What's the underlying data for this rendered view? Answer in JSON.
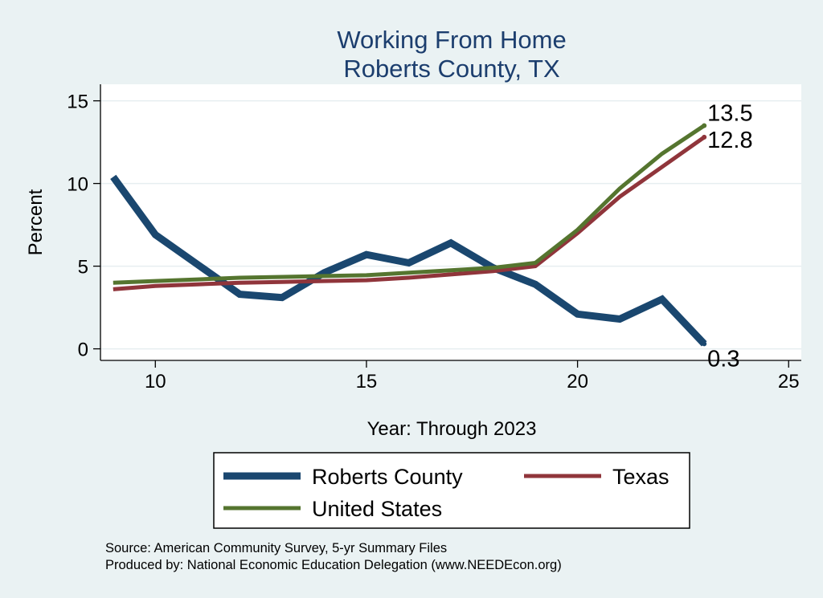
{
  "chart_data": {
    "type": "line",
    "title": "Working From Home",
    "subtitle": "Roberts County, TX",
    "xlabel": "Year: Through 2023",
    "ylabel": "Percent",
    "xlim": [
      8.7,
      25.3
    ],
    "ylim": [
      -0.7,
      16
    ],
    "x_ticks": [
      10,
      15,
      20,
      25
    ],
    "y_ticks": [
      0,
      5,
      10,
      15
    ],
    "grid": true,
    "legend_position": "bottom",
    "series": [
      {
        "name": "Roberts County",
        "color": "#1a476f",
        "x": [
          9,
          10,
          11,
          12,
          13,
          14,
          15,
          16,
          17,
          18,
          19,
          20,
          21,
          22,
          23
        ],
        "y": [
          10.4,
          6.9,
          5.1,
          3.3,
          3.1,
          4.6,
          5.7,
          5.2,
          6.4,
          4.9,
          3.9,
          2.1,
          1.8,
          3.0,
          0.3
        ],
        "end_label": "0.3"
      },
      {
        "name": "Texas",
        "color": "#90353b",
        "x": [
          9,
          10,
          11,
          12,
          13,
          14,
          15,
          16,
          17,
          18,
          19,
          20,
          21,
          22,
          23
        ],
        "y": [
          3.6,
          3.8,
          3.9,
          4.0,
          4.05,
          4.1,
          4.15,
          4.3,
          4.5,
          4.7,
          5.0,
          7.0,
          9.2,
          11.0,
          12.8
        ],
        "end_label": "12.8"
      },
      {
        "name": "United States",
        "color": "#55752f",
        "x": [
          9,
          10,
          11,
          12,
          13,
          14,
          15,
          16,
          17,
          18,
          19,
          20,
          21,
          22,
          23
        ],
        "y": [
          4.0,
          4.1,
          4.2,
          4.3,
          4.35,
          4.4,
          4.45,
          4.6,
          4.75,
          4.9,
          5.2,
          7.2,
          9.7,
          11.8,
          13.5
        ],
        "end_label": "13.5"
      }
    ],
    "legend": [
      "Roberts County",
      "Texas",
      "United States"
    ]
  },
  "source": {
    "line1": "Source: American Community Survey, 5-yr Summary Files",
    "line2": "Produced by: National Economic Education Delegation (www.NEEDEcon.org)"
  }
}
